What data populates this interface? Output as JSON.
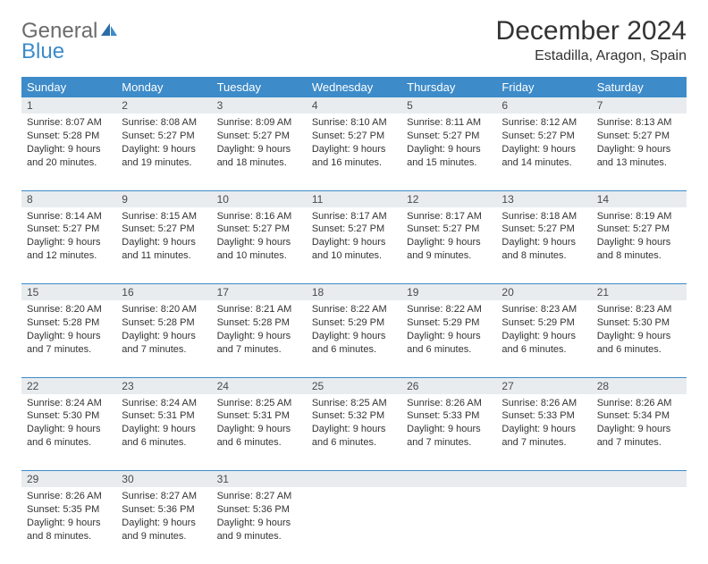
{
  "logo": {
    "word1": "General",
    "word2": "Blue"
  },
  "header": {
    "month_title": "December 2024",
    "location": "Estadilla, Aragon, Spain"
  },
  "colors": {
    "header_bg": "#3d8bc9",
    "header_text": "#ffffff",
    "daynum_bg": "#e8ecef",
    "row_divider": "#3d8bc9",
    "body_text": "#333333",
    "logo_gray": "#6b6b6b",
    "logo_blue": "#3d8bc9"
  },
  "days_of_week": [
    "Sunday",
    "Monday",
    "Tuesday",
    "Wednesday",
    "Thursday",
    "Friday",
    "Saturday"
  ],
  "weeks": [
    [
      {
        "n": "1",
        "sr": "Sunrise: 8:07 AM",
        "ss": "Sunset: 5:28 PM",
        "d1": "Daylight: 9 hours",
        "d2": "and 20 minutes."
      },
      {
        "n": "2",
        "sr": "Sunrise: 8:08 AM",
        "ss": "Sunset: 5:27 PM",
        "d1": "Daylight: 9 hours",
        "d2": "and 19 minutes."
      },
      {
        "n": "3",
        "sr": "Sunrise: 8:09 AM",
        "ss": "Sunset: 5:27 PM",
        "d1": "Daylight: 9 hours",
        "d2": "and 18 minutes."
      },
      {
        "n": "4",
        "sr": "Sunrise: 8:10 AM",
        "ss": "Sunset: 5:27 PM",
        "d1": "Daylight: 9 hours",
        "d2": "and 16 minutes."
      },
      {
        "n": "5",
        "sr": "Sunrise: 8:11 AM",
        "ss": "Sunset: 5:27 PM",
        "d1": "Daylight: 9 hours",
        "d2": "and 15 minutes."
      },
      {
        "n": "6",
        "sr": "Sunrise: 8:12 AM",
        "ss": "Sunset: 5:27 PM",
        "d1": "Daylight: 9 hours",
        "d2": "and 14 minutes."
      },
      {
        "n": "7",
        "sr": "Sunrise: 8:13 AM",
        "ss": "Sunset: 5:27 PM",
        "d1": "Daylight: 9 hours",
        "d2": "and 13 minutes."
      }
    ],
    [
      {
        "n": "8",
        "sr": "Sunrise: 8:14 AM",
        "ss": "Sunset: 5:27 PM",
        "d1": "Daylight: 9 hours",
        "d2": "and 12 minutes."
      },
      {
        "n": "9",
        "sr": "Sunrise: 8:15 AM",
        "ss": "Sunset: 5:27 PM",
        "d1": "Daylight: 9 hours",
        "d2": "and 11 minutes."
      },
      {
        "n": "10",
        "sr": "Sunrise: 8:16 AM",
        "ss": "Sunset: 5:27 PM",
        "d1": "Daylight: 9 hours",
        "d2": "and 10 minutes."
      },
      {
        "n": "11",
        "sr": "Sunrise: 8:17 AM",
        "ss": "Sunset: 5:27 PM",
        "d1": "Daylight: 9 hours",
        "d2": "and 10 minutes."
      },
      {
        "n": "12",
        "sr": "Sunrise: 8:17 AM",
        "ss": "Sunset: 5:27 PM",
        "d1": "Daylight: 9 hours",
        "d2": "and 9 minutes."
      },
      {
        "n": "13",
        "sr": "Sunrise: 8:18 AM",
        "ss": "Sunset: 5:27 PM",
        "d1": "Daylight: 9 hours",
        "d2": "and 8 minutes."
      },
      {
        "n": "14",
        "sr": "Sunrise: 8:19 AM",
        "ss": "Sunset: 5:27 PM",
        "d1": "Daylight: 9 hours",
        "d2": "and 8 minutes."
      }
    ],
    [
      {
        "n": "15",
        "sr": "Sunrise: 8:20 AM",
        "ss": "Sunset: 5:28 PM",
        "d1": "Daylight: 9 hours",
        "d2": "and 7 minutes."
      },
      {
        "n": "16",
        "sr": "Sunrise: 8:20 AM",
        "ss": "Sunset: 5:28 PM",
        "d1": "Daylight: 9 hours",
        "d2": "and 7 minutes."
      },
      {
        "n": "17",
        "sr": "Sunrise: 8:21 AM",
        "ss": "Sunset: 5:28 PM",
        "d1": "Daylight: 9 hours",
        "d2": "and 7 minutes."
      },
      {
        "n": "18",
        "sr": "Sunrise: 8:22 AM",
        "ss": "Sunset: 5:29 PM",
        "d1": "Daylight: 9 hours",
        "d2": "and 6 minutes."
      },
      {
        "n": "19",
        "sr": "Sunrise: 8:22 AM",
        "ss": "Sunset: 5:29 PM",
        "d1": "Daylight: 9 hours",
        "d2": "and 6 minutes."
      },
      {
        "n": "20",
        "sr": "Sunrise: 8:23 AM",
        "ss": "Sunset: 5:29 PM",
        "d1": "Daylight: 9 hours",
        "d2": "and 6 minutes."
      },
      {
        "n": "21",
        "sr": "Sunrise: 8:23 AM",
        "ss": "Sunset: 5:30 PM",
        "d1": "Daylight: 9 hours",
        "d2": "and 6 minutes."
      }
    ],
    [
      {
        "n": "22",
        "sr": "Sunrise: 8:24 AM",
        "ss": "Sunset: 5:30 PM",
        "d1": "Daylight: 9 hours",
        "d2": "and 6 minutes."
      },
      {
        "n": "23",
        "sr": "Sunrise: 8:24 AM",
        "ss": "Sunset: 5:31 PM",
        "d1": "Daylight: 9 hours",
        "d2": "and 6 minutes."
      },
      {
        "n": "24",
        "sr": "Sunrise: 8:25 AM",
        "ss": "Sunset: 5:31 PM",
        "d1": "Daylight: 9 hours",
        "d2": "and 6 minutes."
      },
      {
        "n": "25",
        "sr": "Sunrise: 8:25 AM",
        "ss": "Sunset: 5:32 PM",
        "d1": "Daylight: 9 hours",
        "d2": "and 6 minutes."
      },
      {
        "n": "26",
        "sr": "Sunrise: 8:26 AM",
        "ss": "Sunset: 5:33 PM",
        "d1": "Daylight: 9 hours",
        "d2": "and 7 minutes."
      },
      {
        "n": "27",
        "sr": "Sunrise: 8:26 AM",
        "ss": "Sunset: 5:33 PM",
        "d1": "Daylight: 9 hours",
        "d2": "and 7 minutes."
      },
      {
        "n": "28",
        "sr": "Sunrise: 8:26 AM",
        "ss": "Sunset: 5:34 PM",
        "d1": "Daylight: 9 hours",
        "d2": "and 7 minutes."
      }
    ],
    [
      {
        "n": "29",
        "sr": "Sunrise: 8:26 AM",
        "ss": "Sunset: 5:35 PM",
        "d1": "Daylight: 9 hours",
        "d2": "and 8 minutes."
      },
      {
        "n": "30",
        "sr": "Sunrise: 8:27 AM",
        "ss": "Sunset: 5:36 PM",
        "d1": "Daylight: 9 hours",
        "d2": "and 9 minutes."
      },
      {
        "n": "31",
        "sr": "Sunrise: 8:27 AM",
        "ss": "Sunset: 5:36 PM",
        "d1": "Daylight: 9 hours",
        "d2": "and 9 minutes."
      },
      null,
      null,
      null,
      null
    ]
  ]
}
